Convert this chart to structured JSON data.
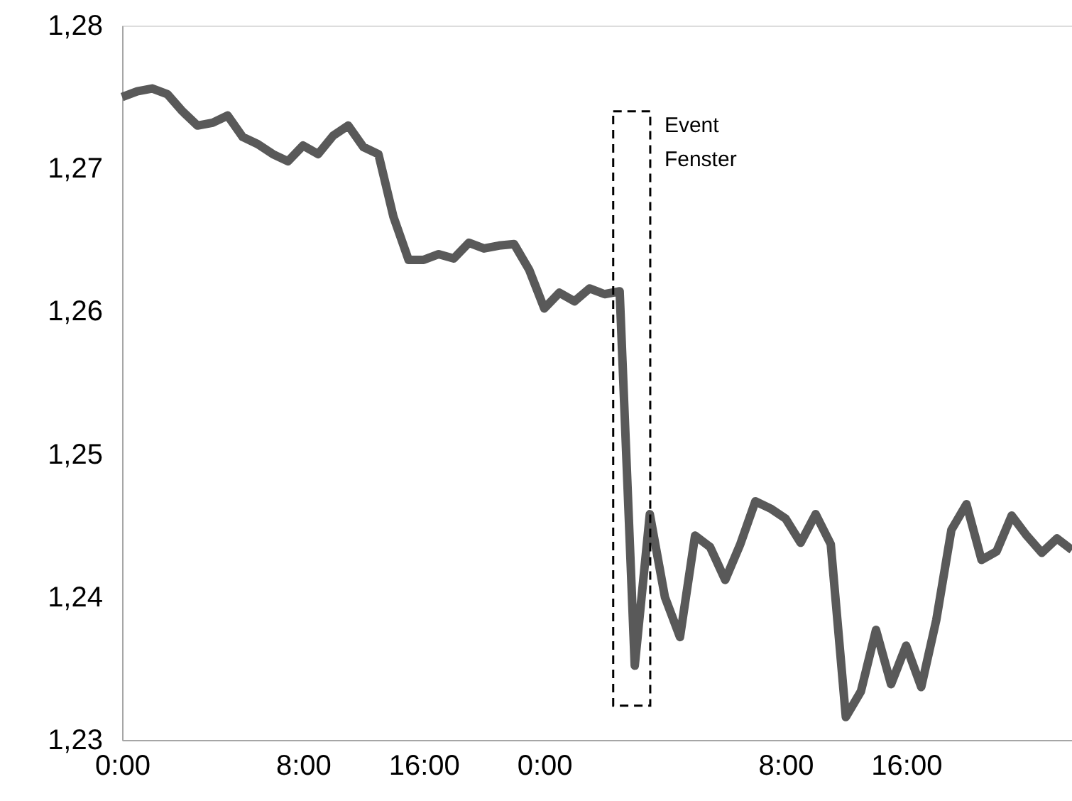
{
  "chart_data": {
    "type": "line",
    "categories": [
      "0:00",
      null,
      null,
      null,
      null,
      null,
      null,
      null,
      null,
      null,
      null,
      null,
      "8:00",
      null,
      null,
      null,
      null,
      null,
      null,
      null,
      "16:00",
      null,
      null,
      null,
      null,
      null,
      null,
      null,
      "0:00",
      null,
      null,
      null,
      null,
      null,
      null,
      null,
      null,
      null,
      null,
      null,
      null,
      null,
      null,
      null,
      "8:00",
      null,
      null,
      null,
      null,
      null,
      null,
      null,
      "16:00",
      null,
      null,
      null,
      null,
      null,
      null,
      null,
      null,
      null,
      null,
      null
    ],
    "series": [
      {
        "color": "#595959",
        "values": [
          1.275,
          1.2754,
          1.2756,
          1.2752,
          1.274,
          1.273,
          1.2732,
          1.2737,
          1.2722,
          1.2717,
          1.271,
          1.2705,
          1.2716,
          1.271,
          1.2723,
          1.273,
          1.2715,
          1.271,
          1.2666,
          1.2636,
          1.2636,
          1.264,
          1.2637,
          1.2648,
          1.2644,
          1.2646,
          1.2647,
          1.2629,
          1.2602,
          1.2613,
          1.2607,
          1.2616,
          1.2612,
          1.2614,
          1.2352,
          1.2458,
          1.24,
          1.2372,
          1.2443,
          1.2435,
          1.2412,
          1.2437,
          1.2467,
          1.2462,
          1.2455,
          1.2438,
          1.2458,
          1.2437,
          1.2316,
          1.2334,
          1.2377,
          1.2339,
          1.2366,
          1.2337,
          1.2384,
          1.2447,
          1.2465,
          1.2426,
          1.2432,
          1.2457,
          1.2443,
          1.2431,
          1.2441,
          1.2433
        ]
      }
    ],
    "ylim": [
      1.23,
      1.28
    ],
    "yticks": [
      {
        "value": 1.23,
        "label": "1,23"
      },
      {
        "value": 1.24,
        "label": "1,24"
      },
      {
        "value": 1.25,
        "label": "1,25"
      },
      {
        "value": 1.26,
        "label": "1,26"
      },
      {
        "value": 1.27,
        "label": "1,27"
      },
      {
        "value": 1.28,
        "label": "1,28"
      }
    ],
    "annotations": [
      "Event\nFenster"
    ],
    "grid": false,
    "marker": "none",
    "line_style": "solid"
  }
}
